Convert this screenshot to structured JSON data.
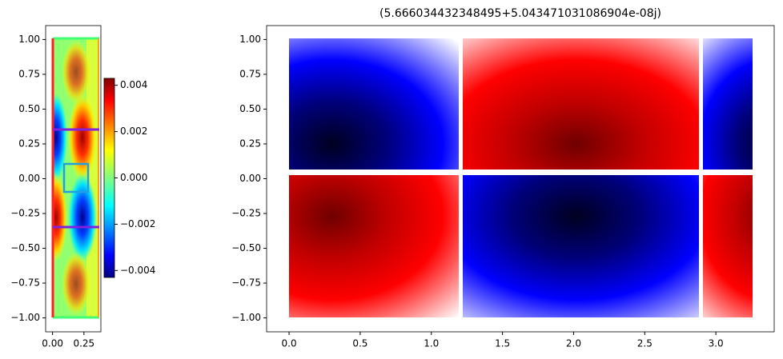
{
  "chart_data": [
    {
      "type": "heatmap",
      "xlim": [
        -0.055,
        0.385
      ],
      "ylim": [
        -1.1,
        1.1
      ],
      "xticks": [
        {
          "value": 0,
          "label": "0.00"
        },
        0.25
      ],
      "yticks": [
        {
          "value": -1,
          "label": "−1.00"
        },
        {
          "value": -0.75,
          "label": "−0.75"
        },
        {
          "value": -0.5,
          "label": "−0.50"
        },
        {
          "value": -0.25,
          "label": "−0.25"
        },
        {
          "value": 0,
          "label": "0.00"
        },
        0.25,
        {
          "value": 0.5,
          "label": "0.50"
        },
        0.75,
        {
          "value": 1,
          "label": "1.00"
        }
      ],
      "colormap": "jet",
      "clim": [
        -0.0043,
        0.0043
      ],
      "cticks": [
        {
          "value": -0.004,
          "label": "−0.004"
        },
        {
          "value": -0.002,
          "label": "−0.002"
        },
        {
          "value": 0,
          "label": "0.000"
        },
        0.002,
        0.004
      ]
    },
    {
      "type": "heatmap",
      "title": "(5.666034432348495+5.043471031086904e-08j)",
      "xlim": [
        -0.158,
        3.41
      ],
      "ylim": [
        -1.1,
        1.1
      ],
      "xticks": [
        {
          "value": 0,
          "label": "0.0"
        },
        0.5,
        {
          "value": 1,
          "label": "1.0"
        },
        1.5,
        {
          "value": 2,
          "label": "2.0"
        },
        2.5,
        {
          "value": 3,
          "label": "3.0"
        }
      ],
      "yticks": [
        {
          "value": -1,
          "label": "−1.00"
        },
        {
          "value": -0.75,
          "label": "−0.75"
        },
        {
          "value": -0.5,
          "label": "−0.50"
        },
        {
          "value": -0.25,
          "label": "−0.25"
        },
        {
          "value": 0,
          "label": "0.00"
        },
        0.25,
        {
          "value": 0.5,
          "label": "0.50"
        },
        0.75,
        {
          "value": 1,
          "label": "1.00"
        }
      ],
      "colormap": "bwr"
    }
  ]
}
